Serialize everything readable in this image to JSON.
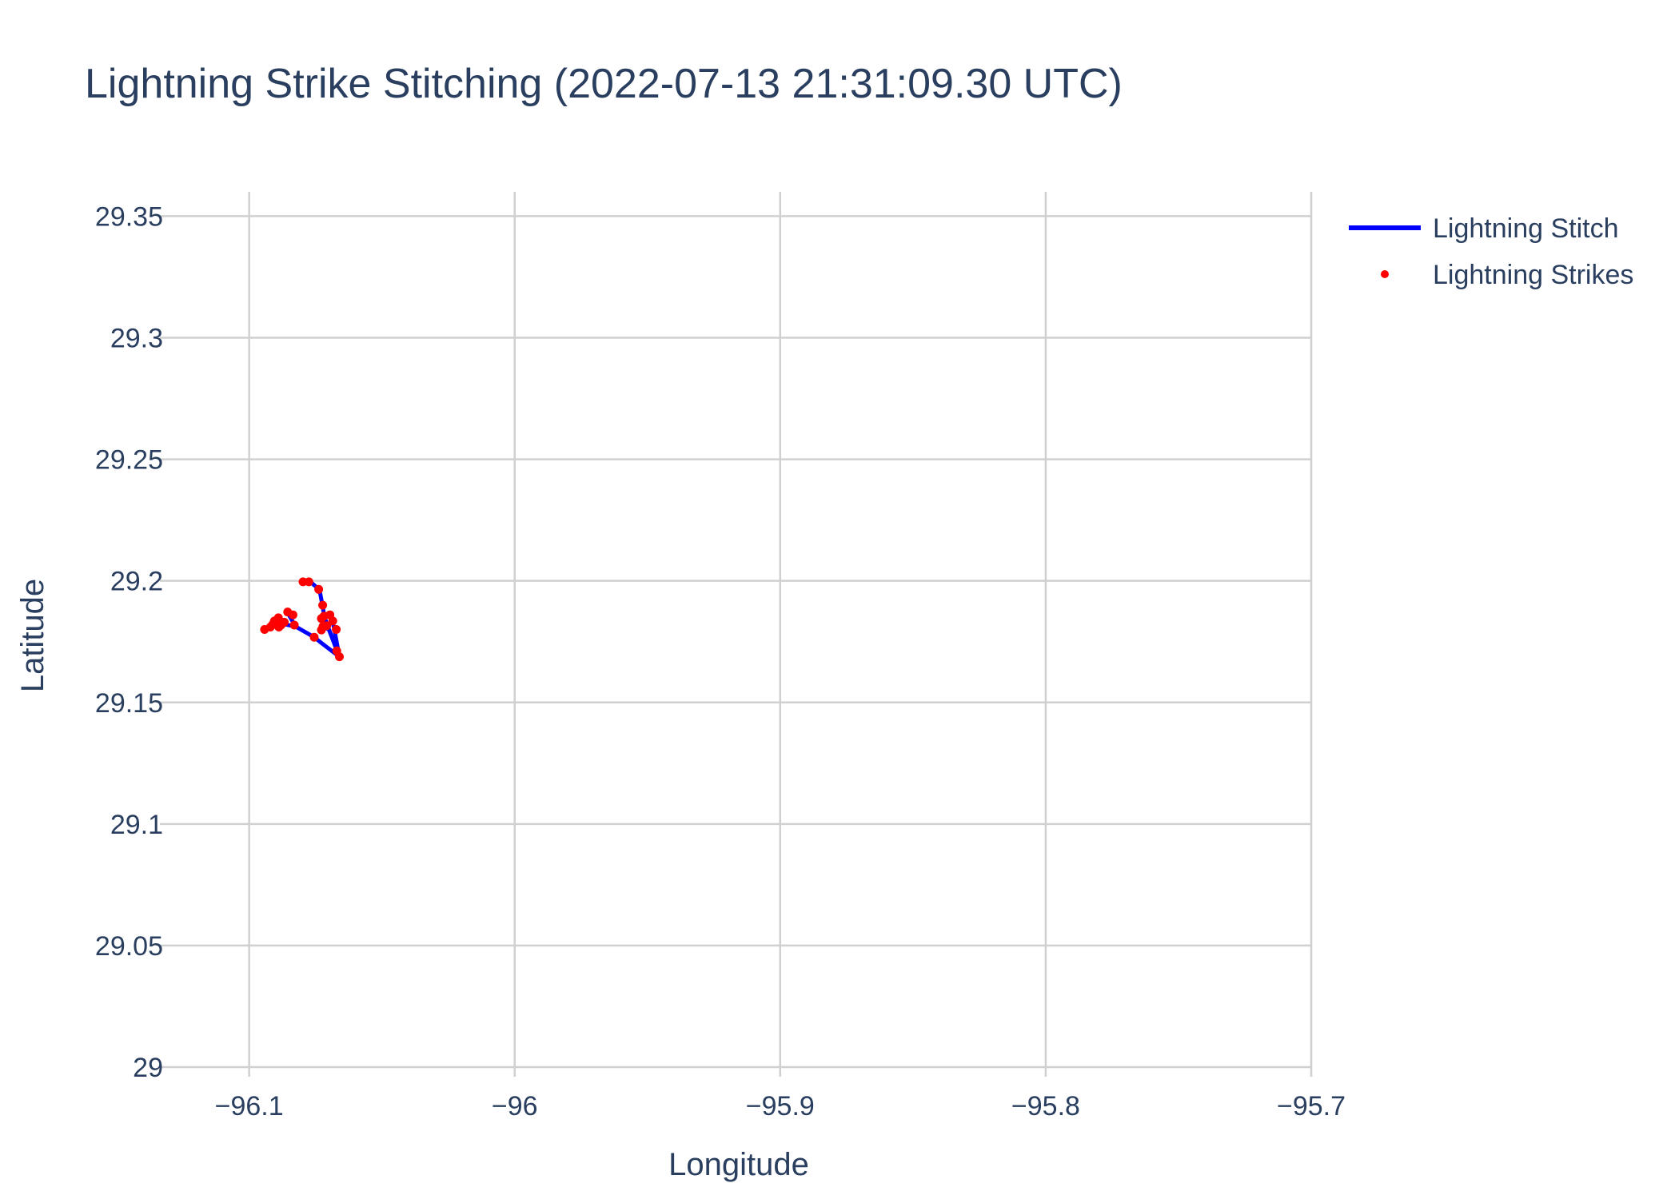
{
  "colors": {
    "text": "#2a3f5f",
    "grid": "#d0d0d0",
    "stitch": "#0000ff",
    "strikes": "#ff0000",
    "background": "#ffffff"
  },
  "chart_data": {
    "type": "scatter",
    "title": "Lightning Strike Stitching (2022-07-13 21:31:09.30 UTC)",
    "xlabel": "Longitude",
    "ylabel": "Latitude",
    "xlim": [
      -96.13,
      -95.7
    ],
    "ylim": [
      29.0,
      29.36
    ],
    "xticks": [
      -96.1,
      -96.0,
      -95.9,
      -95.8,
      -95.7
    ],
    "xtick_labels": [
      "−96.1",
      "−96",
      "−95.9",
      "−95.8",
      "−95.7"
    ],
    "yticks": [
      29.0,
      29.05,
      29.1,
      29.15,
      29.2,
      29.25,
      29.3,
      29.35
    ],
    "ytick_labels": [
      "29",
      "29.05",
      "29.1",
      "29.15",
      "29.2",
      "29.25",
      "29.3",
      "29.35"
    ],
    "grid": true,
    "legend_position": "top-right",
    "legend": [
      {
        "name": "Lightning Stitch",
        "symbol": "line",
        "color": "#0000ff"
      },
      {
        "name": "Lightning Strikes",
        "symbol": "marker",
        "color": "#ff0000"
      }
    ],
    "series": [
      {
        "name": "Lightning Stitch",
        "mode": "lines",
        "color": "#0000ff",
        "segments": [
          [
            [
              -96.0797,
              29.1996
            ],
            [
              -96.0765,
              29.1992
            ],
            [
              -96.0735,
              29.1963
            ],
            [
              -96.0724,
              29.19
            ],
            [
              -96.0716,
              29.185
            ],
            [
              -96.0672,
              29.172
            ],
            [
              -96.066,
              29.1688
            ]
          ],
          [
            [
              -96.066,
              29.1688
            ],
            [
              -96.068,
              29.1805
            ],
            [
              -96.069,
              29.185
            ]
          ],
          [
            [
              -96.066,
              29.1688
            ],
            [
              -96.07,
              29.18
            ],
            [
              -96.0725,
              29.1812
            ]
          ],
          [
            [
              -96.066,
              29.1688
            ],
            [
              -96.072,
              29.1738
            ],
            [
              -96.0755,
              29.1768
            ],
            [
              -96.0825,
              29.1812
            ],
            [
              -96.087,
              29.1822
            ]
          ],
          [
            [
              -96.087,
              29.1822
            ],
            [
              -96.09,
              29.1822
            ],
            [
              -96.092,
              29.1812
            ],
            [
              -96.094,
              29.18
            ]
          ],
          [
            [
              -96.0825,
              29.1812
            ],
            [
              -96.0855,
              29.1868
            ],
            [
              -96.0835,
              29.186
            ]
          ]
        ]
      },
      {
        "name": "Lightning Strikes",
        "mode": "markers",
        "color": "#ff0000",
        "x": [
          -96.0797,
          -96.0775,
          -96.0738,
          -96.0723,
          -96.0718,
          -96.0696,
          -96.0685,
          -96.0672,
          -96.067,
          -96.066,
          -96.0728,
          -96.0728,
          -96.0722,
          -96.0708,
          -96.0755,
          -96.0855,
          -96.0835,
          -96.083,
          -96.0868,
          -96.088,
          -96.0888,
          -96.089,
          -96.0895,
          -96.0905,
          -96.0912,
          -96.092,
          -96.0942
        ],
        "y": [
          29.1996,
          29.1996,
          29.1965,
          29.19,
          29.1855,
          29.186,
          29.1835,
          29.18,
          29.1712,
          29.1688,
          29.1845,
          29.1798,
          29.1812,
          29.1815,
          29.1768,
          29.1872,
          29.186,
          29.1818,
          29.183,
          29.1818,
          29.181,
          29.1848,
          29.1835,
          29.1835,
          29.182,
          29.181,
          29.18
        ]
      }
    ]
  }
}
